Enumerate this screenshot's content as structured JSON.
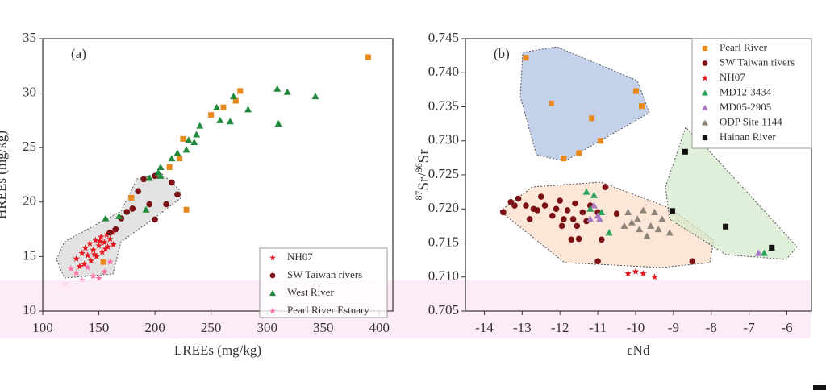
{
  "chart_data": [
    {
      "type": "scatter",
      "panel": "(a)",
      "xlabel": "LREEs (mg/kg)",
      "ylabel": "HREEs (mg/kg)",
      "xlim": [
        100,
        412
      ],
      "ylim": [
        10,
        35
      ],
      "xticks": [
        100,
        150,
        200,
        250,
        300,
        350,
        400
      ],
      "yticks": [
        10,
        15,
        20,
        25,
        30,
        35
      ],
      "series": [
        {
          "color": "#e8891c",
          "marker": "square",
          "x": [
            390,
            276,
            272,
            261,
            250,
            225,
            222,
            213,
            228,
            179,
            154
          ],
          "y": [
            33.3,
            30.2,
            29.3,
            28.7,
            28,
            25.8,
            24,
            23.2,
            19.3,
            20.4,
            14.5
          ]
        },
        {
          "name": "NH07",
          "color": "#e8161e",
          "marker": "star",
          "x": [
            130,
            135,
            138,
            140,
            142,
            145,
            147,
            150,
            152,
            153,
            155,
            157,
            158,
            160,
            162,
            163,
            165,
            143,
            148,
            137,
            133,
            156,
            151,
            146
          ],
          "y": [
            14.8,
            15.3,
            15.8,
            15.1,
            16.2,
            15.6,
            16.5,
            16,
            16.8,
            15.4,
            16.3,
            17,
            15.9,
            16.6,
            17.2,
            16.1,
            17.5,
            14.6,
            15,
            14.3,
            14.1,
            15.7,
            16.4,
            15.2
          ]
        },
        {
          "name": "SW Taiwan rivers",
          "color": "#7b1114",
          "marker": "circle",
          "x": [
            220,
            210,
            200,
            190,
            185,
            180,
            175,
            170,
            165,
            160,
            195,
            200,
            215
          ],
          "y": [
            20.7,
            19.8,
            22.4,
            22.1,
            21,
            19.4,
            19.1,
            18.5,
            17.5,
            17.2,
            19.8,
            18.4,
            21.8
          ]
        },
        {
          "name": "West River",
          "color": "#1f8a3a",
          "marker": "triangle",
          "x": [
            309,
            318,
            343,
            310,
            283,
            270,
            267,
            258,
            255,
            240,
            237,
            235,
            230,
            228,
            220,
            215,
            205,
            203,
            195,
            156,
            168,
            192,
            205
          ],
          "y": [
            30.4,
            30.1,
            29.7,
            27.2,
            28.5,
            29.7,
            27.4,
            27.5,
            28.7,
            27,
            26.2,
            25.5,
            25.7,
            24.8,
            24.5,
            24,
            23.2,
            22.7,
            22.2,
            18.5,
            18.7,
            19.3,
            22.4
          ]
        },
        {
          "name": "Pearl River Estuary",
          "color": "#ff6fa8",
          "marker": "star",
          "x": [
            120,
            130,
            140,
            150,
            160,
            135,
            145,
            125,
            155
          ],
          "y": [
            12.5,
            13.5,
            14,
            13,
            14.5,
            12.8,
            13.2,
            13.9,
            13.6
          ]
        }
      ]
    },
    {
      "type": "scatter",
      "panel": "(b)",
      "xlabel": "εNd",
      "ylabel_parts": [
        "87",
        "Sr/",
        "86",
        "Sr"
      ],
      "xlim": [
        -14.5,
        -5.35
      ],
      "ylim": [
        0.705,
        0.745
      ],
      "xticks": [
        -14,
        -13,
        -12,
        -11,
        -10,
        -9,
        -8,
        -7,
        -6
      ],
      "yticks": [
        0.705,
        {
          "value": 0.71,
          "label": "0.710"
        },
        0.715,
        {
          "value": 0.72,
          "label": "0.720"
        },
        0.725,
        {
          "value": 0.73,
          "label": "0.730"
        },
        0.735,
        {
          "value": 0.74,
          "label": "0.740"
        },
        0.745
      ],
      "series": [
        {
          "name": "Pearl River",
          "color": "#e8891c",
          "marker": "square",
          "x": [
            -12.9,
            -12.23,
            -9.99,
            -9.84,
            -11.16,
            -10.93,
            -11.5,
            -11.9
          ],
          "y": [
            0.7422,
            0.7355,
            0.7373,
            0.7351,
            0.7333,
            0.73,
            0.7282,
            0.7274
          ]
        },
        {
          "name": "SW Taiwan rivers",
          "color": "#7b1114",
          "marker": "circle",
          "x": [
            -13.5,
            -13.3,
            -13.1,
            -12.9,
            -12.7,
            -12.5,
            -12.4,
            -12.2,
            -12.1,
            -12,
            -11.9,
            -11.8,
            -11.7,
            -11.6,
            -11.5,
            -11.4,
            -11.3,
            -11.2,
            -11,
            -10.8,
            -12.8,
            -12.6,
            -11.95,
            -11.65,
            -11.55,
            -10.5,
            -10.9,
            -11,
            -8.5,
            -13.2
          ],
          "y": [
            0.7195,
            0.721,
            0.7215,
            0.7205,
            0.72,
            0.7218,
            0.7205,
            0.719,
            0.72,
            0.7212,
            0.7185,
            0.7198,
            0.7155,
            0.7208,
            0.7156,
            0.7195,
            0.7182,
            0.7205,
            0.7195,
            0.7232,
            0.7185,
            0.7198,
            0.7175,
            0.7185,
            0.7175,
            0.7193,
            0.7155,
            0.7123,
            0.7123,
            0.7205
          ]
        },
        {
          "name": "NH07",
          "color": "#e8161e",
          "marker": "star",
          "x": [
            -10.2,
            -10,
            -9.8,
            -9.5
          ],
          "y": [
            0.7105,
            0.7108,
            0.7105,
            0.71
          ]
        },
        {
          "name": "MD12-3434",
          "color": "#2aa35a",
          "marker": "triangle",
          "x": [
            -11.3,
            -11.1,
            -11.2,
            -10.9,
            -10.7,
            -6.6,
            -6.4
          ],
          "y": [
            0.7225,
            0.722,
            0.72,
            0.7195,
            0.7165,
            0.7135,
            0.7143
          ]
        },
        {
          "name": "MD05-2905",
          "color": "#a879c0",
          "marker": "triangle",
          "x": [
            -11.1,
            -11,
            -11.2,
            -10.95,
            -6.75
          ],
          "y": [
            0.7205,
            0.719,
            0.7185,
            0.7185,
            0.7135
          ]
        },
        {
          "name": "ODP Site 1144",
          "color": "#8c8478",
          "marker": "triangle",
          "x": [
            -10.2,
            -9.95,
            -10.1,
            -9.8,
            -9.6,
            -9.4,
            -9.3,
            -9.1,
            -10.3,
            -9.7,
            -9.5,
            -9.9
          ],
          "y": [
            0.7195,
            0.7185,
            0.718,
            0.7198,
            0.7175,
            0.717,
            0.7185,
            0.7165,
            0.7175,
            0.716,
            0.7195,
            0.717
          ]
        },
        {
          "name": "Hainan River",
          "color": "#111111",
          "marker": "square",
          "x": [
            -8.69,
            -9.03,
            -7.62,
            -6.4
          ],
          "y": [
            0.7284,
            0.7197,
            0.7174,
            0.7143
          ]
        }
      ]
    }
  ]
}
